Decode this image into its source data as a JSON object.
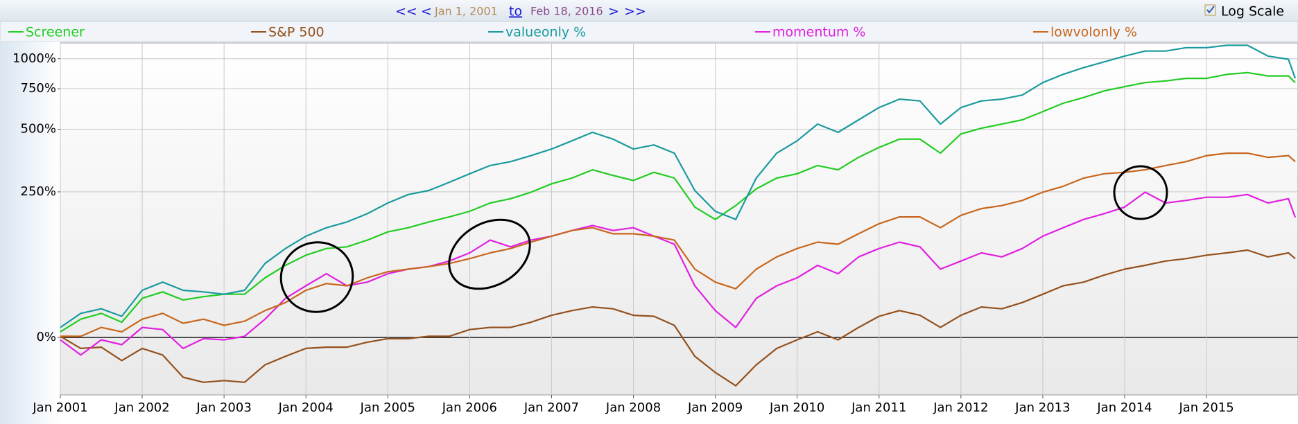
{
  "toolbar": {
    "first": "<<",
    "prev": "<",
    "start_date": "Jan 1, 2001",
    "to": "to",
    "end_date": "Feb 18, 2016",
    "next": ">",
    "last": ">>",
    "log_scale_label": "Log Scale"
  },
  "chart_data": {
    "type": "line",
    "log_scale": true,
    "grid": true,
    "x": [
      "2001-01",
      "2001-04",
      "2001-07",
      "2001-10",
      "2002-01",
      "2002-04",
      "2002-07",
      "2002-10",
      "2003-01",
      "2003-04",
      "2003-07",
      "2003-10",
      "2004-01",
      "2004-04",
      "2004-07",
      "2004-10",
      "2005-01",
      "2005-04",
      "2005-07",
      "2005-10",
      "2006-01",
      "2006-04",
      "2006-07",
      "2006-10",
      "2007-01",
      "2007-04",
      "2007-07",
      "2007-10",
      "2008-01",
      "2008-04",
      "2008-07",
      "2008-10",
      "2009-01",
      "2009-04",
      "2009-07",
      "2009-10",
      "2010-01",
      "2010-04",
      "2010-07",
      "2010-10",
      "2011-01",
      "2011-04",
      "2011-07",
      "2011-10",
      "2012-01",
      "2012-04",
      "2012-07",
      "2012-10",
      "2013-01",
      "2013-04",
      "2013-07",
      "2013-10",
      "2014-01",
      "2014-04",
      "2014-07",
      "2014-10",
      "2015-01",
      "2015-04",
      "2015-07",
      "2015-10",
      "2016-01",
      "2016-02"
    ],
    "series": [
      {
        "name": "Screener",
        "color": "#22cc22",
        "values": [
          5,
          17,
          23,
          14,
          40,
          48,
          38,
          42,
          45,
          45,
          67,
          86,
          103,
          115,
          118,
          131,
          148,
          157,
          170,
          182,
          196,
          218,
          230,
          249,
          275,
          294,
          323,
          303,
          286,
          314,
          294,
          207,
          176,
          211,
          259,
          294,
          309,
          339,
          323,
          371,
          413,
          451,
          451,
          388,
          476,
          505,
          527,
          550,
          598,
          650,
          688,
          734,
          765,
          796,
          809,
          829,
          829,
          862,
          876,
          849,
          849,
          796
        ]
      },
      {
        "name": "S&P 500",
        "color": "#94501c",
        "values": [
          1,
          -9,
          -8,
          -18,
          -9,
          -14,
          -29,
          -32,
          -31,
          -32,
          -21,
          -15,
          -9,
          -8,
          -8,
          -4,
          -1,
          -1,
          1,
          1,
          7,
          9,
          9,
          14,
          21,
          26,
          30,
          28,
          21,
          20,
          11,
          -15,
          -26,
          -34,
          -21,
          -9,
          -2,
          5,
          -2,
          9,
          20,
          26,
          21,
          9,
          21,
          30,
          28,
          35,
          45,
          56,
          61,
          71,
          80,
          86,
          93,
          97,
          103,
          107,
          112,
          100,
          107,
          97
        ]
      },
      {
        "name": "valueonly %",
        "color": "#1a9a9e",
        "values": [
          9,
          23,
          28,
          20,
          50,
          61,
          50,
          48,
          45,
          50,
          89,
          115,
          139,
          157,
          170,
          190,
          218,
          242,
          254,
          280,
          309,
          339,
          354,
          378,
          406,
          443,
          484,
          451,
          406,
          424,
          388,
          254,
          196,
          176,
          294,
          388,
          443,
          527,
          484,
          550,
          623,
          677,
          665,
          527,
          623,
          665,
          677,
          705,
          796,
          862,
          919,
          971,
          1026,
          1075,
          1075,
          1110,
          1110,
          1135,
          1135,
          1026,
          995,
          829
        ]
      },
      {
        "name": "momentum %",
        "color": "#e020e0",
        "values": [
          -2,
          -14,
          -2,
          -6,
          9,
          7,
          -9,
          -1,
          -2,
          1,
          17,
          40,
          56,
          73,
          56,
          61,
          73,
          80,
          84,
          93,
          107,
          131,
          118,
          131,
          139,
          151,
          162,
          151,
          157,
          139,
          123,
          56,
          26,
          9,
          40,
          56,
          67,
          86,
          73,
          100,
          115,
          127,
          118,
          80,
          93,
          107,
          100,
          115,
          139,
          157,
          176,
          190,
          207,
          249,
          218,
          225,
          234,
          234,
          242,
          218,
          230,
          181
        ]
      },
      {
        "name": "lowvolonly %",
        "color": "#c8661c",
        "values": [
          1,
          1,
          9,
          5,
          17,
          23,
          13,
          17,
          11,
          15,
          26,
          35,
          50,
          59,
          56,
          67,
          76,
          80,
          84,
          89,
          97,
          107,
          115,
          127,
          139,
          151,
          157,
          144,
          144,
          139,
          131,
          80,
          61,
          52,
          80,
          100,
          115,
          127,
          123,
          144,
          166,
          182,
          182,
          157,
          186,
          203,
          211,
          225,
          249,
          267,
          294,
          309,
          314,
          323,
          339,
          354,
          378,
          388,
          388,
          371,
          378,
          354
        ]
      }
    ],
    "xlim": [
      "2001-01",
      "2016-02"
    ],
    "xticks": [
      {
        "value": "2001-01",
        "label": "Jan 2001"
      },
      {
        "value": "2002-01",
        "label": "Jan 2002"
      },
      {
        "value": "2003-01",
        "label": "Jan 2003"
      },
      {
        "value": "2004-01",
        "label": "Jan 2004"
      },
      {
        "value": "2005-01",
        "label": "Jan 2005"
      },
      {
        "value": "2006-01",
        "label": "Jan 2006"
      },
      {
        "value": "2007-01",
        "label": "Jan 2007"
      },
      {
        "value": "2008-01",
        "label": "Jan 2008"
      },
      {
        "value": "2009-01",
        "label": "Jan 2009"
      },
      {
        "value": "2010-01",
        "label": "Jan 2010"
      },
      {
        "value": "2011-01",
        "label": "Jan 2011"
      },
      {
        "value": "2012-01",
        "label": "Jan 2012"
      },
      {
        "value": "2013-01",
        "label": "Jan 2013"
      },
      {
        "value": "2014-01",
        "label": "Jan 2014"
      },
      {
        "value": "2015-01",
        "label": "Jan 2015"
      }
    ],
    "ylim": [
      -39,
      1160
    ],
    "yticks": [
      {
        "value": 0,
        "label": "0%"
      },
      {
        "value": 250,
        "label": "250%"
      },
      {
        "value": 500,
        "label": "500%"
      },
      {
        "value": 750,
        "label": "750%"
      },
      {
        "value": 1000,
        "label": "1000%"
      }
    ]
  }
}
